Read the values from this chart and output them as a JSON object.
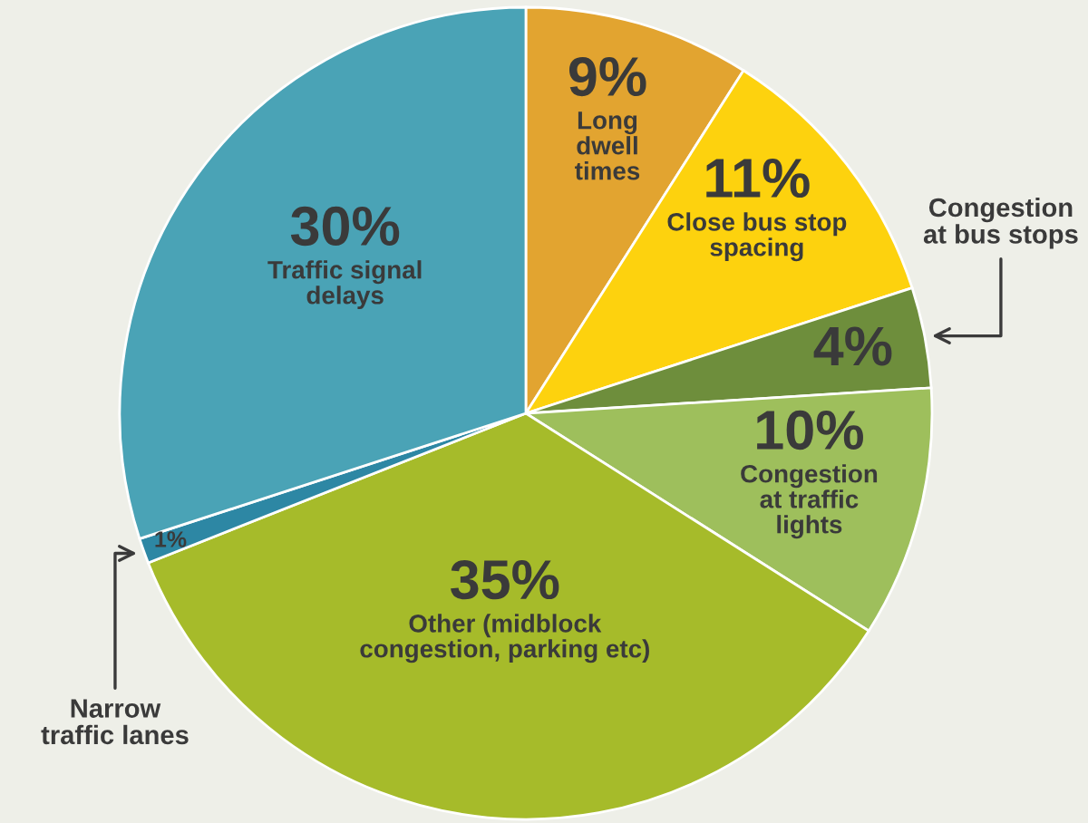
{
  "chart_data": {
    "type": "pie",
    "categories": [
      "Long\ndwell\ntimes",
      "Close bus stop\nspacing",
      "Congestion\nat bus stops",
      "Congestion\nat traffic\nlights",
      "Other (midblock\ncongestion, parking etc)",
      "Narrow\ntraffic lanes",
      "Traffic signal\ndelays"
    ],
    "values": [
      9,
      11,
      4,
      10,
      35,
      1,
      30
    ],
    "value_labels": [
      "9%",
      "11%",
      "4%",
      "10%",
      "35%",
      "1%",
      "30%"
    ],
    "colors": [
      "#e2a430",
      "#fdd20e",
      "#6e8e3c",
      "#9ebf5c",
      "#a6bb2a",
      "#2d87a4",
      "#4aa3b6"
    ]
  }
}
